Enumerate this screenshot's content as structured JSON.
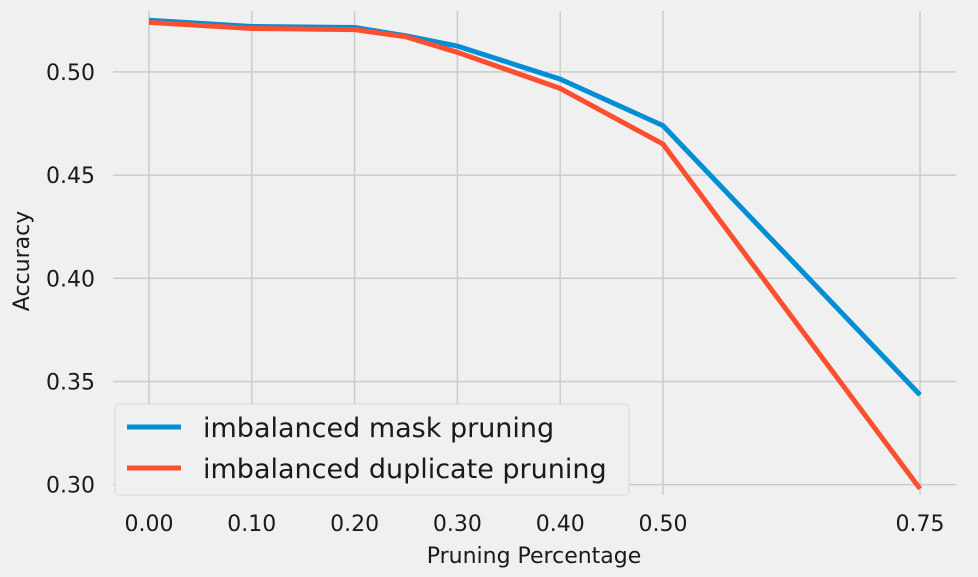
{
  "chart_data": {
    "type": "line",
    "title": "",
    "xlabel": "Pruning Percentage",
    "ylabel": "Accuracy",
    "x": [
      0.0,
      0.1,
      0.2,
      0.25,
      0.3,
      0.4,
      0.5,
      0.75
    ],
    "xticks": [
      0.0,
      0.1,
      0.2,
      0.3,
      0.4,
      0.5,
      0.75
    ],
    "xtick_labels": [
      "0.00",
      "0.10",
      "0.20",
      "0.30",
      "0.40",
      "0.50",
      "0.75"
    ],
    "yticks": [
      0.3,
      0.35,
      0.4,
      0.45,
      0.5
    ],
    "ytick_labels": [
      "0.30",
      "0.35",
      "0.40",
      "0.45",
      "0.50"
    ],
    "xlim": [
      -0.035,
      0.785
    ],
    "ylim": [
      0.295,
      0.5295
    ],
    "grid": true,
    "legend_position": "lower-left",
    "series": [
      {
        "name": "imbalanced mask pruning",
        "color": "#008fd5",
        "values": [
          0.525,
          0.522,
          0.5215,
          0.5175,
          0.5125,
          0.4965,
          0.474,
          0.3435
        ]
      },
      {
        "name": "imbalanced duplicate pruning",
        "color": "#fc4f30",
        "values": [
          0.524,
          0.521,
          0.5205,
          0.517,
          0.5095,
          0.492,
          0.465,
          0.298
        ]
      }
    ]
  }
}
